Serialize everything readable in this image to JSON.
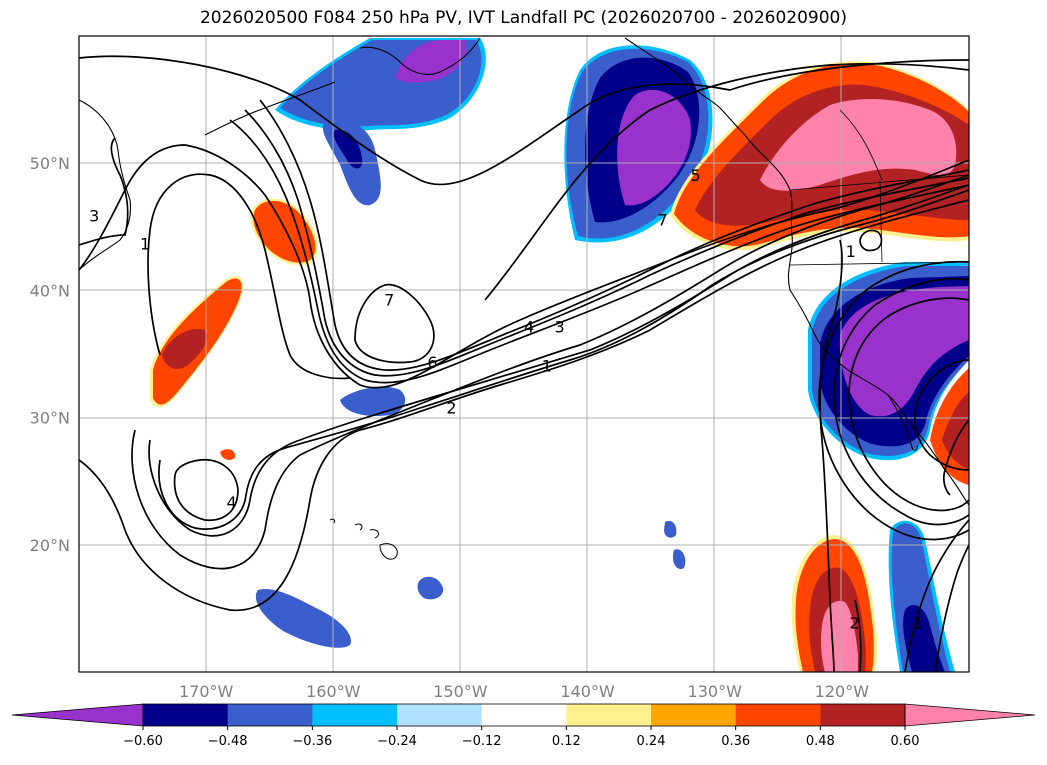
{
  "title": "2026020500 F084 250 hPa PV, IVT Landfall PC (2026020700 - 2026020900)",
  "colors": {
    "fill_levels": [
      "#9932cc",
      "#00008b",
      "#3a5fcd",
      "#00bfff",
      "#b0e2ff",
      "#ffffff",
      "#fff08f",
      "#ffa500",
      "#ff4500",
      "#b22222",
      "#ff82ab"
    ],
    "grid": "#b0b0b0",
    "contour": "#000000",
    "coast": "#000000"
  },
  "map": {
    "lat_labels": [
      {
        "lat": 50,
        "label": "50°N"
      },
      {
        "lat": 40,
        "label": "40°N"
      },
      {
        "lat": 30,
        "label": "30°N"
      },
      {
        "lat": 20,
        "label": "20°N"
      }
    ],
    "lon_labels": [
      {
        "lon": -170,
        "label": "170°W"
      },
      {
        "lon": -160,
        "label": "160°W"
      },
      {
        "lon": -150,
        "label": "150°W"
      },
      {
        "lon": -140,
        "label": "140°W"
      },
      {
        "lon": -130,
        "label": "130°W"
      },
      {
        "lon": -120,
        "label": "120°W"
      }
    ],
    "contour_labels": [
      {
        "text": "3",
        "lon": -178.8,
        "lat": 45.8
      },
      {
        "text": "1",
        "lon": -174.8,
        "lat": 43.6
      },
      {
        "text": "7",
        "lon": -155.6,
        "lat": 39.2
      },
      {
        "text": "6",
        "lon": -152.2,
        "lat": 34.3
      },
      {
        "text": "4",
        "lon": -144.6,
        "lat": 37.1
      },
      {
        "text": "3",
        "lon": -142.2,
        "lat": 37.1
      },
      {
        "text": "1",
        "lon": -143.2,
        "lat": 34.0
      },
      {
        "text": "2",
        "lon": -150.7,
        "lat": 30.7
      },
      {
        "text": "4",
        "lon": -168.0,
        "lat": 23.3
      },
      {
        "text": "7",
        "lon": -134.1,
        "lat": 45.5
      },
      {
        "text": "5",
        "lon": -131.5,
        "lat": 49.0
      },
      {
        "text": "1",
        "lon": -119.3,
        "lat": 43.0
      },
      {
        "text": "2",
        "lon": -119.0,
        "lat": 13.8
      },
      {
        "text": "1",
        "lon": -114.0,
        "lat": 13.8
      }
    ]
  },
  "colorbar": {
    "boundaries": [
      -0.72,
      -0.6,
      -0.48,
      -0.36,
      -0.24,
      -0.12,
      0.12,
      0.24,
      0.36,
      0.48,
      0.6,
      0.72
    ],
    "tick_values": [
      -0.6,
      -0.48,
      -0.36,
      -0.24,
      -0.12,
      0.12,
      0.24,
      0.36,
      0.48,
      0.6
    ],
    "tick_labels": [
      "−0.60",
      "−0.48",
      "−0.36",
      "−0.24",
      "−0.12",
      "0.12",
      "0.24",
      "0.36",
      "0.48",
      "0.60"
    ],
    "extend": "both"
  }
}
